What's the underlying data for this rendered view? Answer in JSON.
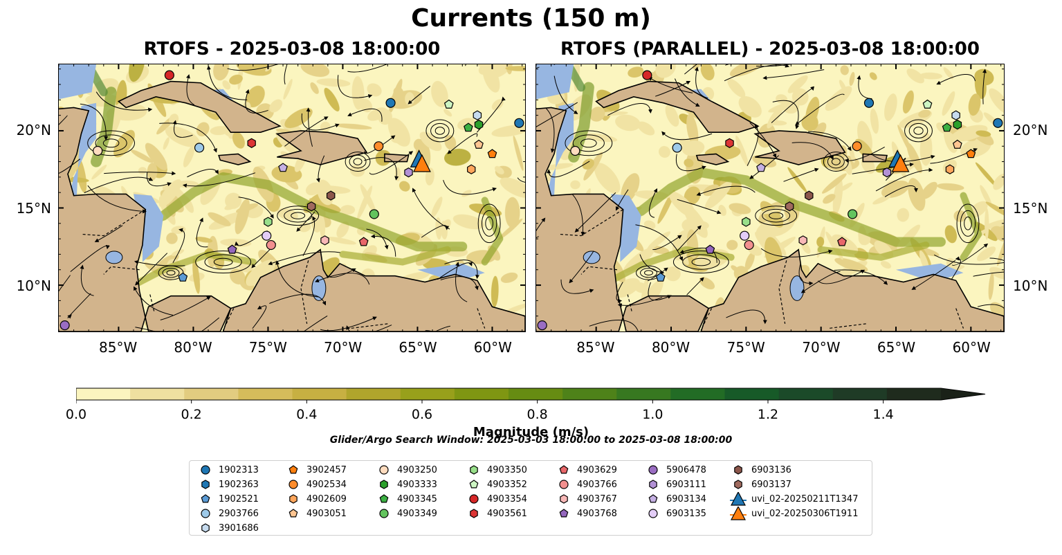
{
  "figure_title": "Currents (150 m)",
  "panels": [
    {
      "id": "left",
      "title": "RTOFS - 2025-03-08 18:00:00"
    },
    {
      "id": "right",
      "title": "RTOFS (PARALLEL) - 2025-03-08 18:00:00"
    }
  ],
  "lon_ticks": [
    "85°W",
    "80°W",
    "75°W",
    "70°W",
    "65°W",
    "60°W"
  ],
  "lat_ticks": [
    "20°N",
    "15°N",
    "10°N"
  ],
  "colorbar": {
    "label": "Magnitude (m/s)",
    "tick_labels": [
      "0.0",
      "0.2",
      "0.4",
      "0.6",
      "0.8",
      "1.0",
      "1.2",
      "1.4"
    ],
    "colors": [
      "#fbf5bf",
      "#efe0a0",
      "#e2cc80",
      "#d5bc5b",
      "#c7b042",
      "#b0a52c",
      "#98a01b",
      "#7f9612",
      "#668c12",
      "#4e8219",
      "#377820",
      "#226c25",
      "#175a28",
      "#1b4a29",
      "#1f3b26",
      "#1f2b1d"
    ],
    "extend_color": "#1a2118"
  },
  "search_window": "Glider/Argo Search Window: 2025-03-03 18:00:00 to 2025-03-08 18:00:00",
  "legend": [
    {
      "label": "1902313",
      "marker": "circle",
      "color": "#1f77b4"
    },
    {
      "label": "1902363",
      "marker": "hexagon",
      "color": "#1f77b4"
    },
    {
      "label": "1902521",
      "marker": "pentagon",
      "color": "#5b9bd5"
    },
    {
      "label": "2903766",
      "marker": "circle",
      "color": "#9ecae9"
    },
    {
      "label": "3901686",
      "marker": "hexagon",
      "color": "#c6dbef"
    },
    {
      "label": "3902457",
      "marker": "pentagon",
      "color": "#ff7f0e"
    },
    {
      "label": "4902534",
      "marker": "circle",
      "color": "#ff8c2b"
    },
    {
      "label": "4902609",
      "marker": "hexagon",
      "color": "#ffa65c"
    },
    {
      "label": "4903051",
      "marker": "pentagon",
      "color": "#ffc591"
    },
    {
      "label": "4903250",
      "marker": "circle",
      "color": "#ffdcbf"
    },
    {
      "label": "4903333",
      "marker": "hexagon",
      "color": "#2ca02c"
    },
    {
      "label": "4903345",
      "marker": "pentagon",
      "color": "#3cb043"
    },
    {
      "label": "4903349",
      "marker": "circle",
      "color": "#63c45e"
    },
    {
      "label": "4903350",
      "marker": "hexagon",
      "color": "#98df8a"
    },
    {
      "label": "4903352",
      "marker": "pentagon",
      "color": "#cdf5c3"
    },
    {
      "label": "4903354",
      "marker": "circle",
      "color": "#d62728"
    },
    {
      "label": "4903561",
      "marker": "hexagon",
      "color": "#dc3535"
    },
    {
      "label": "4903629",
      "marker": "pentagon",
      "color": "#e8676a"
    },
    {
      "label": "4903766",
      "marker": "circle",
      "color": "#f2908f"
    },
    {
      "label": "4903767",
      "marker": "hexagon",
      "color": "#f8b8b7"
    },
    {
      "label": "4903768",
      "marker": "pentagon",
      "color": "#9467bd"
    },
    {
      "label": "5906478",
      "marker": "circle",
      "color": "#9a6dc2"
    },
    {
      "label": "6903111",
      "marker": "hexagon",
      "color": "#b291d5"
    },
    {
      "label": "6903134",
      "marker": "pentagon",
      "color": "#c5b0e3"
    },
    {
      "label": "6903135",
      "marker": "circle",
      "color": "#e3cdf7"
    },
    {
      "label": "6903136",
      "marker": "hexagon",
      "color": "#8c564b"
    },
    {
      "label": "6903137",
      "marker": "hexagon",
      "color": "#a06a5e"
    },
    {
      "label": "uvi_02-20250211T1347",
      "marker": "triangle-line",
      "color": "#1f77b4"
    },
    {
      "label": "uvi_02-20250306T1911",
      "marker": "triangle-line",
      "color": "#ff7f0e"
    }
  ],
  "platforms": [
    {
      "id": "1902313",
      "marker": "circle",
      "color": "#1f77b4",
      "lon": -58.2,
      "lat": 20.5
    },
    {
      "id": "1902313b",
      "marker": "circle",
      "color": "#1f77b4",
      "lon": -66.8,
      "lat": 21.8
    },
    {
      "id": "1902521",
      "marker": "pentagon",
      "color": "#5b9bd5",
      "lon": -80.7,
      "lat": 10.5
    },
    {
      "id": "2903766",
      "marker": "circle",
      "color": "#9ecae9",
      "lon": -79.6,
      "lat": 18.9
    },
    {
      "id": "3901686",
      "marker": "hexagon",
      "color": "#c6dbef",
      "lon": -61.0,
      "lat": 21.0
    },
    {
      "id": "3902457",
      "marker": "pentagon",
      "color": "#ff7f0e",
      "lon": -60.0,
      "lat": 18.5
    },
    {
      "id": "4902534",
      "marker": "circle",
      "color": "#ff8c2b",
      "lon": -67.6,
      "lat": 19.0
    },
    {
      "id": "4902609",
      "marker": "hexagon",
      "color": "#ffa65c",
      "lon": -61.4,
      "lat": 17.5
    },
    {
      "id": "4903051",
      "marker": "pentagon",
      "color": "#ffc591",
      "lon": -60.9,
      "lat": 19.1
    },
    {
      "id": "4903250",
      "marker": "circle",
      "color": "#ffdcbf",
      "lon": -86.4,
      "lat": 18.7
    },
    {
      "id": "4903333",
      "marker": "hexagon",
      "color": "#2ca02c",
      "lon": -60.9,
      "lat": 20.4
    },
    {
      "id": "4903345",
      "marker": "pentagon",
      "color": "#3cb043",
      "lon": -61.6,
      "lat": 20.2
    },
    {
      "id": "4903349",
      "marker": "circle",
      "color": "#63c45e",
      "lon": -67.9,
      "lat": 14.6
    },
    {
      "id": "4903350",
      "marker": "hexagon",
      "color": "#98df8a",
      "lon": -75.0,
      "lat": 14.1
    },
    {
      "id": "4903352",
      "marker": "pentagon",
      "color": "#cdf5c3",
      "lon": -62.9,
      "lat": 21.7
    },
    {
      "id": "4903354",
      "marker": "circle",
      "color": "#d62728",
      "lon": -81.6,
      "lat": 23.6
    },
    {
      "id": "4903561",
      "marker": "hexagon",
      "color": "#dc3535",
      "lon": -76.1,
      "lat": 19.2
    },
    {
      "id": "4903629",
      "marker": "pentagon",
      "color": "#e8676a",
      "lon": -68.6,
      "lat": 12.8
    },
    {
      "id": "4903766",
      "marker": "circle",
      "color": "#f2908f",
      "lon": -74.8,
      "lat": 12.6
    },
    {
      "id": "4903767",
      "marker": "hexagon",
      "color": "#f8b8b7",
      "lon": -71.2,
      "lat": 12.9
    },
    {
      "id": "4903768",
      "marker": "pentagon",
      "color": "#9467bd",
      "lon": -77.4,
      "lat": 12.3
    },
    {
      "id": "5906478",
      "marker": "circle",
      "color": "#9a6dc2",
      "lon": -88.6,
      "lat": 7.4
    },
    {
      "id": "6903111",
      "marker": "hexagon",
      "color": "#b291d5",
      "lon": -65.6,
      "lat": 17.3
    },
    {
      "id": "6903134",
      "marker": "pentagon",
      "color": "#c5b0e3",
      "lon": -74.0,
      "lat": 17.6
    },
    {
      "id": "6903135",
      "marker": "circle",
      "color": "#e3cdf7",
      "lon": -75.1,
      "lat": 13.2
    },
    {
      "id": "6903136",
      "marker": "hexagon",
      "color": "#8c564b",
      "lon": -70.8,
      "lat": 15.8
    },
    {
      "id": "6903137",
      "marker": "hexagon",
      "color": "#a06a5e",
      "lon": -72.1,
      "lat": 15.1
    }
  ],
  "gliders": [
    {
      "id": "uvi_02-20250211T1347",
      "color": "#1f77b4",
      "lon": -64.9,
      "lat": 18.1
    },
    {
      "id": "uvi_02-20250306T1911",
      "color": "#ff7f0e",
      "lon": -64.7,
      "lat": 17.8
    }
  ],
  "extent": {
    "lon": [
      -89.0,
      -57.8
    ],
    "lat": [
      7.0,
      24.3
    ]
  },
  "ocean_color": "#fbf5bf",
  "land_color": "#d2b48c",
  "shelf_color": "#97b6e1"
}
